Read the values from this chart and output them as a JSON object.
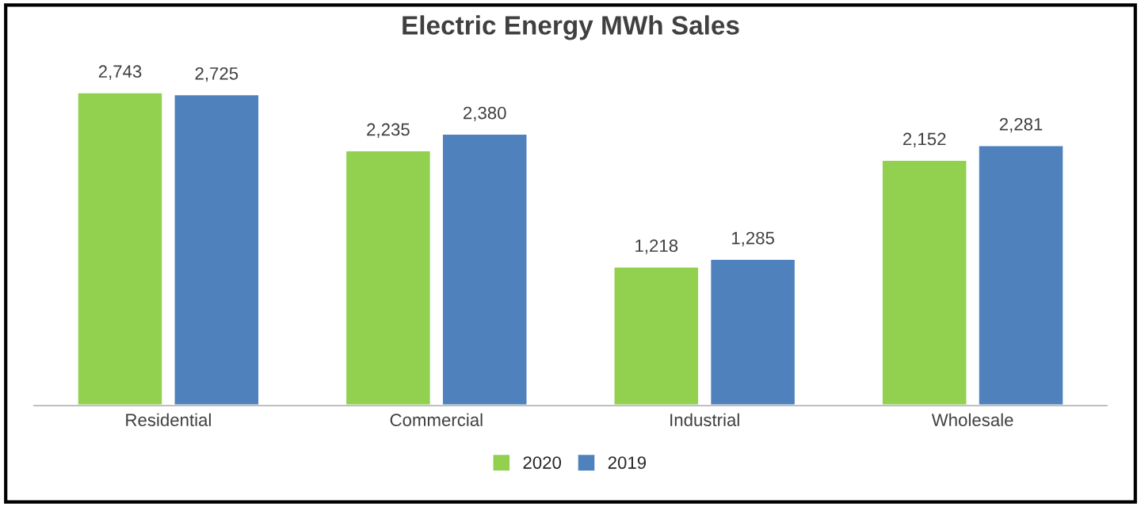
{
  "chart_data": {
    "type": "bar",
    "title": "Electric Energy MWh Sales",
    "categories": [
      "Residential",
      "Commercial",
      "Industrial",
      "Wholesale"
    ],
    "series": [
      {
        "name": "2020",
        "color": "#92d050",
        "values": [
          2743,
          2235,
          1218,
          2152
        ],
        "value_labels": [
          "2,743",
          "2,235",
          "1,218",
          "2,152"
        ]
      },
      {
        "name": "2019",
        "color": "#4f81bd",
        "values": [
          2725,
          2380,
          1285,
          2281
        ],
        "value_labels": [
          "2,725",
          "2,380",
          "1,285",
          "2,281"
        ]
      }
    ],
    "grid": false,
    "legend": "bottom"
  }
}
